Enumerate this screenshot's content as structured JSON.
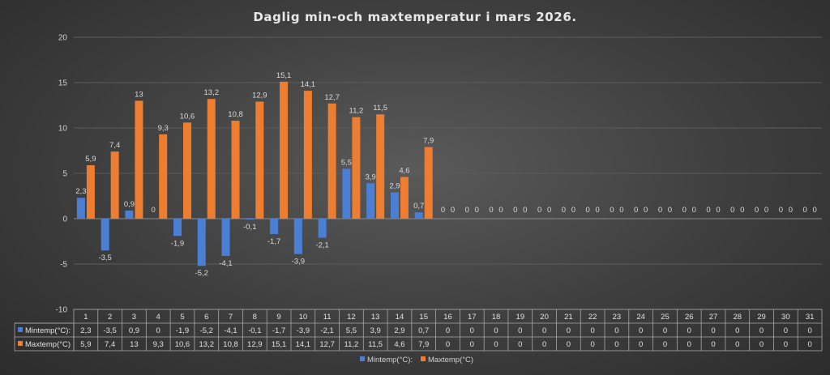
{
  "chart_data": {
    "type": "bar",
    "title": "Daglig min-och maxtemperatur i mars 2026.",
    "categories": [
      "1",
      "2",
      "3",
      "4",
      "5",
      "6",
      "7",
      "8",
      "9",
      "10",
      "11",
      "12",
      "13",
      "14",
      "15",
      "16",
      "17",
      "18",
      "19",
      "20",
      "21",
      "22",
      "23",
      "24",
      "25",
      "26",
      "27",
      "28",
      "29",
      "30",
      "31"
    ],
    "series": [
      {
        "name": "Mintemp(°C):",
        "color": "#4a7fd4",
        "values": [
          2.3,
          -3.5,
          0.9,
          0,
          -1.9,
          -5.2,
          -4.1,
          -0.1,
          -1.7,
          -3.9,
          -2.1,
          5.5,
          3.9,
          2.9,
          0.7,
          0,
          0,
          0,
          0,
          0,
          0,
          0,
          0,
          0,
          0,
          0,
          0,
          0,
          0,
          0,
          0
        ],
        "labels": [
          "2,3",
          "-3,5",
          "0,9",
          "0",
          "-1,9",
          "-5,2",
          "-4,1",
          "-0,1",
          "-1,7",
          "-3,9",
          "-2,1",
          "5,5",
          "3,9",
          "2,9",
          "0,7",
          "0",
          "0",
          "0",
          "0",
          "0",
          "0",
          "0",
          "0",
          "0",
          "0",
          "0",
          "0",
          "0",
          "0",
          "0",
          "0"
        ]
      },
      {
        "name": "Maxtemp(°C)",
        "color": "#ed7d31",
        "values": [
          5.9,
          7.4,
          13,
          9.3,
          10.6,
          13.2,
          10.8,
          12.9,
          15.1,
          14.1,
          12.7,
          11.2,
          11.5,
          4.6,
          7.9,
          0,
          0,
          0,
          0,
          0,
          0,
          0,
          0,
          0,
          0,
          0,
          0,
          0,
          0,
          0,
          0
        ],
        "labels": [
          "5,9",
          "7,4",
          "13",
          "9,3",
          "10,6",
          "13,2",
          "10,8",
          "12,9",
          "15,1",
          "14,1",
          "12,7",
          "11,2",
          "11,5",
          "4,6",
          "7,9",
          "0",
          "0",
          "0",
          "0",
          "0",
          "0",
          "0",
          "0",
          "0",
          "0",
          "0",
          "0",
          "0",
          "0",
          "0",
          "0"
        ]
      }
    ],
    "ylim": [
      -10,
      20
    ],
    "yticks": [
      -10,
      -5,
      0,
      5,
      10,
      15,
      20
    ],
    "ytick_labels": [
      "-10",
      "-5",
      "0",
      "5",
      "10",
      "15",
      "20"
    ],
    "grid": true,
    "legend": "bottom",
    "data_table": true
  }
}
